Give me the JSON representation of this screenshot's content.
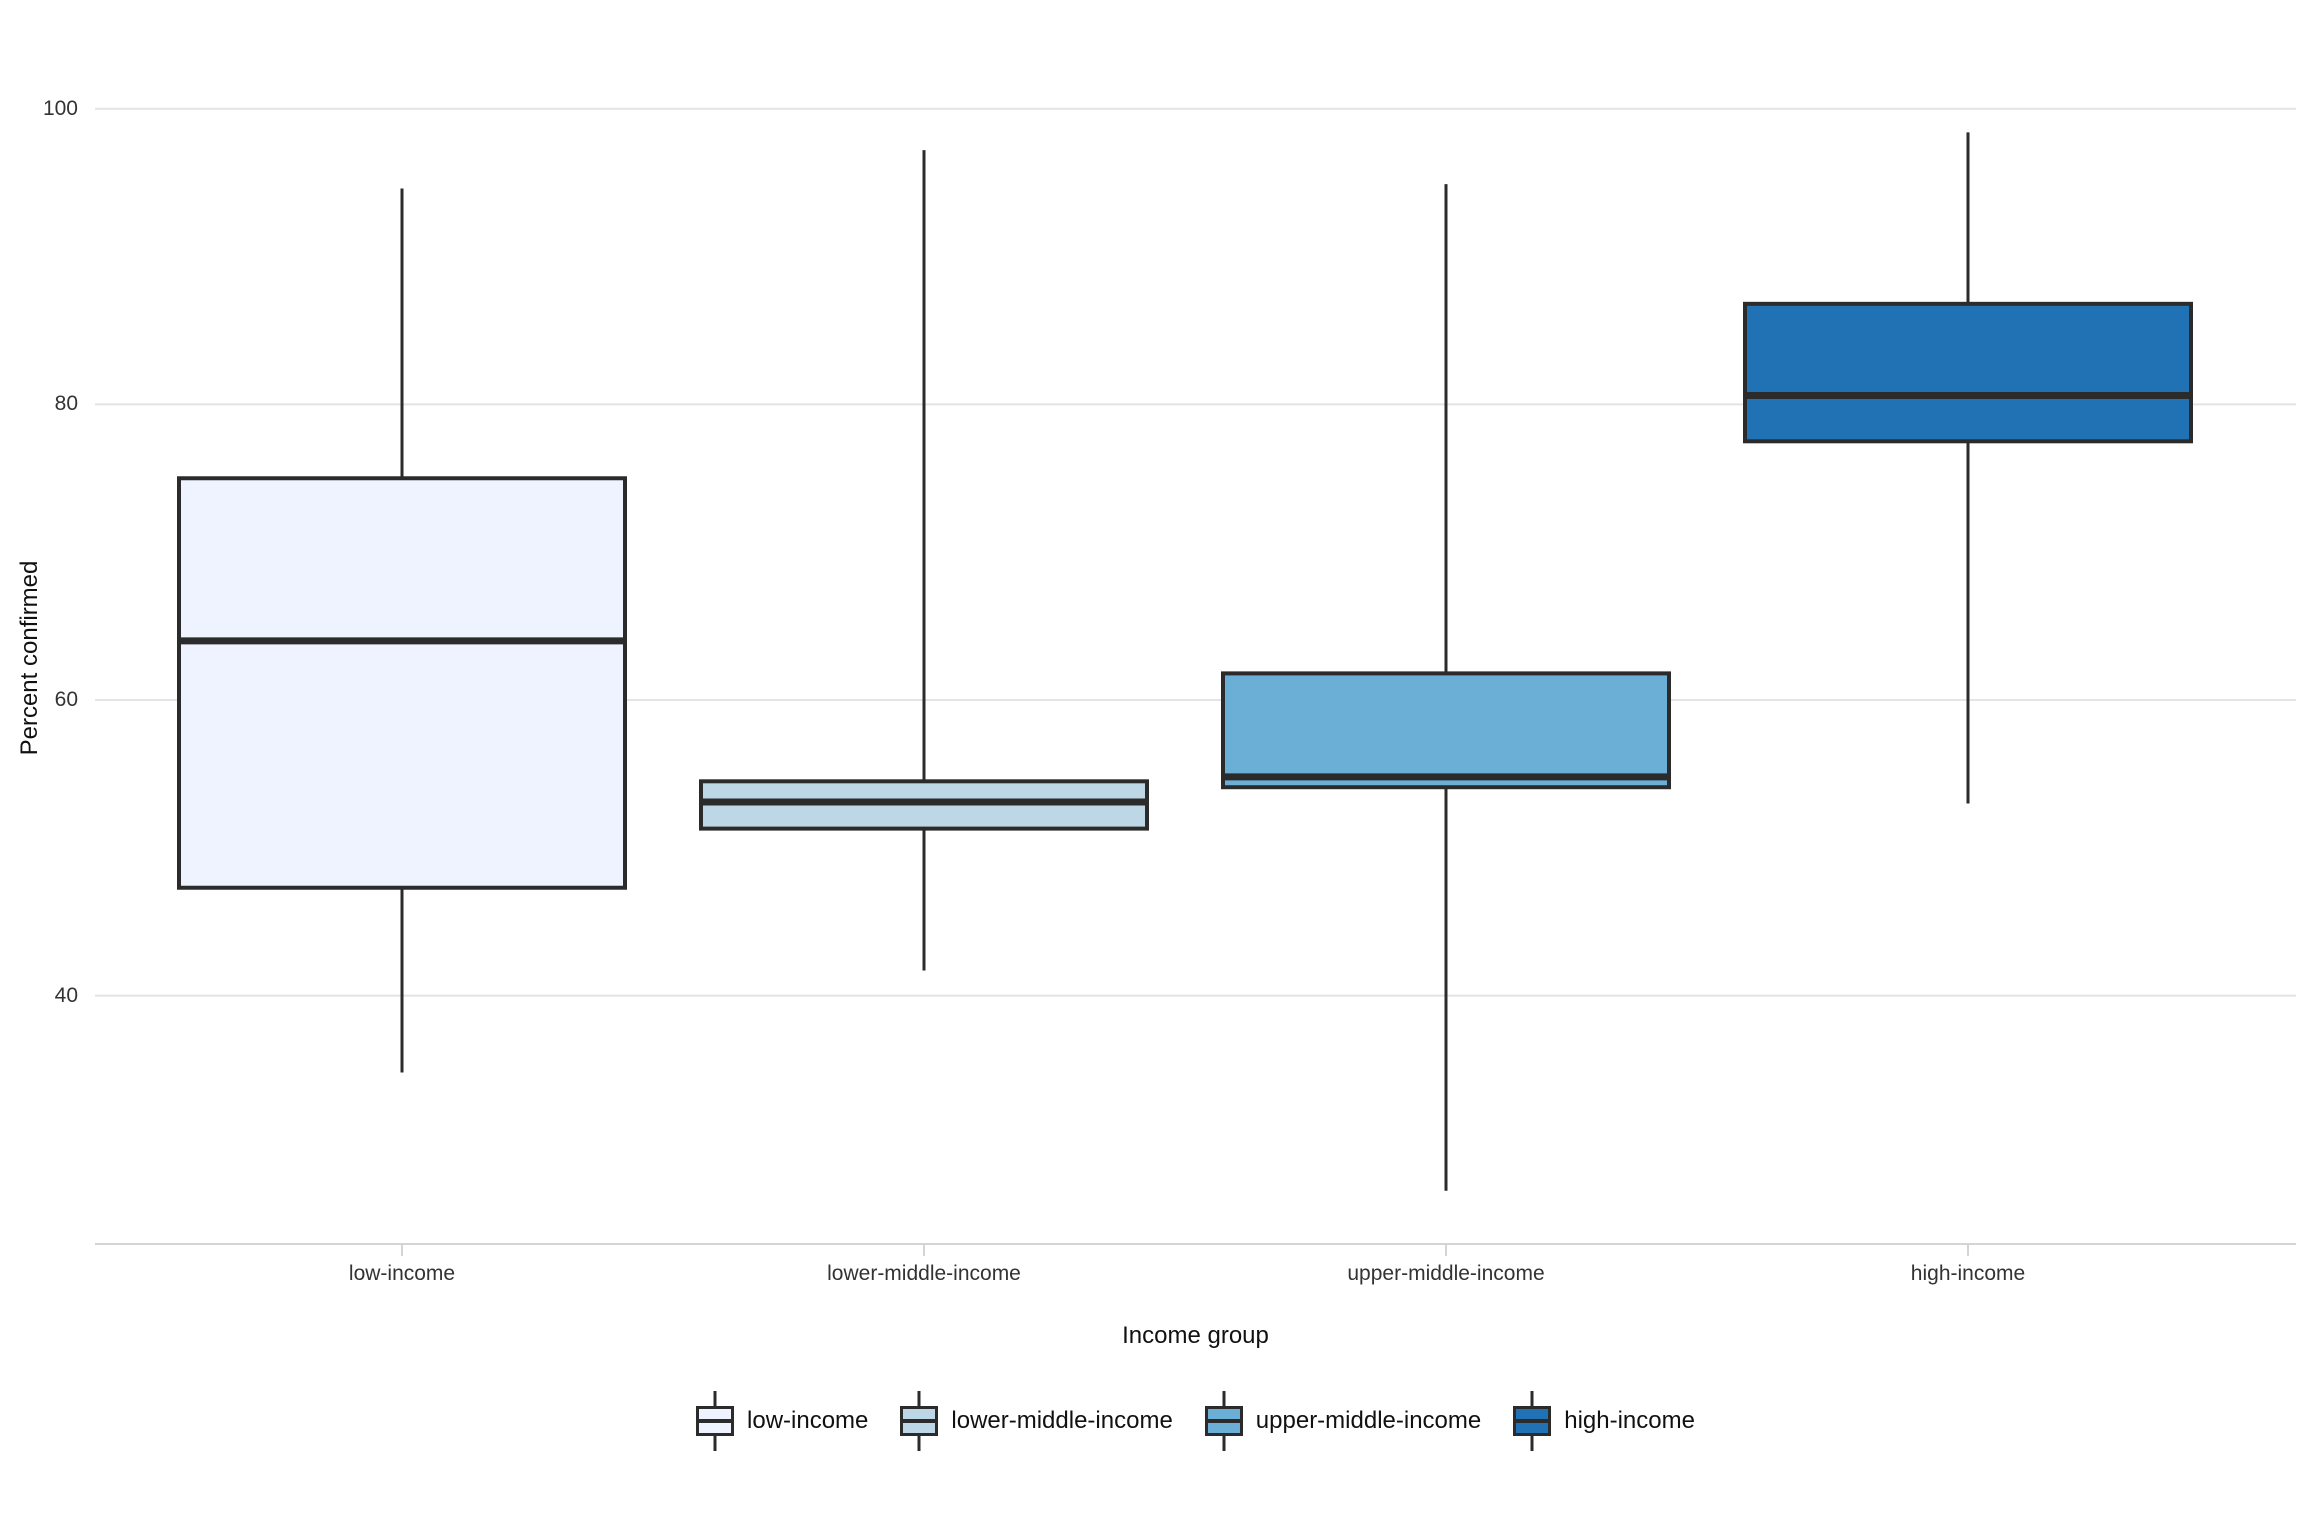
{
  "chart_data": {
    "type": "boxplot",
    "title": "",
    "xlabel": "Income group",
    "ylabel": "Percent confirmed",
    "ylim": [
      23.2,
      106
    ],
    "yticks": [
      100,
      80,
      60,
      40
    ],
    "grid": "horizontal-only",
    "legend_position": "bottom",
    "categories": [
      "low-income",
      "lower-middle-income",
      "upper-middle-income",
      "high-income"
    ],
    "groups": [
      {
        "label": "low-income",
        "color": "#EFF3FF",
        "whisker_low": 34.8,
        "q1": 47.3,
        "median": 64.0,
        "q3": 75.0,
        "whisker_high": 94.6
      },
      {
        "label": "lower-middle-income",
        "color": "#BDD7E7",
        "whisker_low": 41.7,
        "q1": 51.3,
        "median": 53.1,
        "q3": 54.5,
        "whisker_high": 97.2
      },
      {
        "label": "upper-middle-income",
        "color": "#6BAED6",
        "whisker_low": 26.8,
        "q1": 54.1,
        "median": 54.8,
        "q3": 61.8,
        "whisker_high": 94.9
      },
      {
        "label": "high-income",
        "color": "#2171B5",
        "whisker_low": 53.0,
        "q1": 77.5,
        "median": 80.6,
        "q3": 86.8,
        "whisker_high": 98.4
      }
    ]
  },
  "colors": {
    "background": "#ffffff",
    "gridline": "#e4e4e4",
    "axis_line": "#d4d4d4",
    "box_border": "#2b2b2b",
    "tick_text": "#333333",
    "title_text": "#111111"
  }
}
